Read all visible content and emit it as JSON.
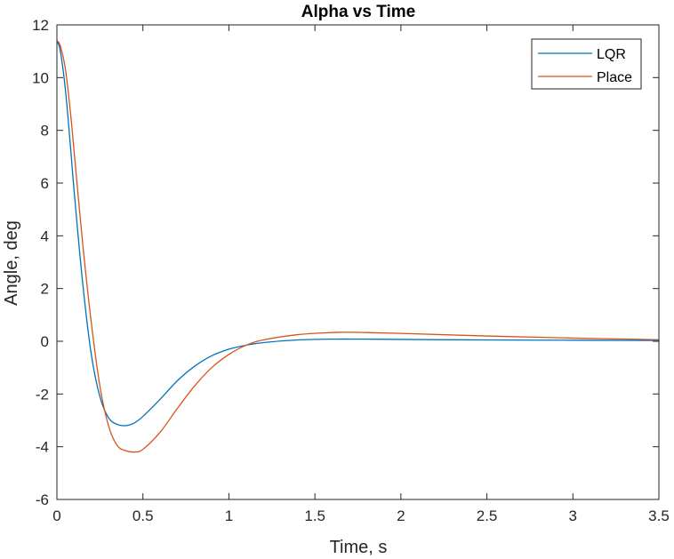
{
  "chart_data": {
    "type": "line",
    "title": "Alpha vs Time",
    "xlabel": "Time, s",
    "ylabel": "Angle, deg",
    "xlim": [
      0,
      3.5
    ],
    "ylim": [
      -6,
      12
    ],
    "xticks": [
      0,
      0.5,
      1,
      1.5,
      2,
      2.5,
      3,
      3.5
    ],
    "xtick_labels": [
      "0",
      "0.5",
      "1",
      "1.5",
      "2",
      "2.5",
      "3",
      "3.5"
    ],
    "yticks": [
      -6,
      -4,
      -2,
      0,
      2,
      4,
      6,
      8,
      10,
      12
    ],
    "ytick_labels": [
      "-6",
      "-4",
      "-2",
      "0",
      "2",
      "4",
      "6",
      "8",
      "10",
      "12"
    ],
    "grid": false,
    "legend_location": "top-right",
    "series": [
      {
        "name": "LQR",
        "color": "#0072BD",
        "x": [
          0,
          0.02,
          0.05,
          0.08,
          0.1,
          0.15,
          0.2,
          0.25,
          0.3,
          0.35,
          0.4,
          0.45,
          0.5,
          0.6,
          0.7,
          0.8,
          0.9,
          1.0,
          1.1,
          1.2,
          1.4,
          1.6,
          1.8,
          2.0,
          2.5,
          3.0,
          3.5
        ],
        "y": [
          11.4,
          11.0,
          9.5,
          7.3,
          5.7,
          2.2,
          -0.5,
          -2.1,
          -2.9,
          -3.15,
          -3.2,
          -3.1,
          -2.85,
          -2.2,
          -1.5,
          -0.95,
          -0.55,
          -0.3,
          -0.15,
          -0.05,
          0.05,
          0.08,
          0.08,
          0.07,
          0.05,
          0.04,
          0.03
        ]
      },
      {
        "name": "Place",
        "color": "#D95319",
        "x": [
          0,
          0.02,
          0.05,
          0.08,
          0.1,
          0.15,
          0.2,
          0.25,
          0.3,
          0.35,
          0.4,
          0.45,
          0.5,
          0.6,
          0.7,
          0.8,
          0.9,
          1.0,
          1.1,
          1.2,
          1.4,
          1.6,
          1.7,
          1.8,
          2.0,
          2.5,
          3.0,
          3.5
        ],
        "y": [
          11.4,
          11.2,
          10.3,
          8.6,
          7.2,
          3.7,
          0.7,
          -1.7,
          -3.2,
          -3.95,
          -4.15,
          -4.2,
          -4.1,
          -3.45,
          -2.55,
          -1.7,
          -1.0,
          -0.5,
          -0.15,
          0.05,
          0.25,
          0.33,
          0.34,
          0.33,
          0.3,
          0.2,
          0.12,
          0.06
        ]
      }
    ]
  }
}
